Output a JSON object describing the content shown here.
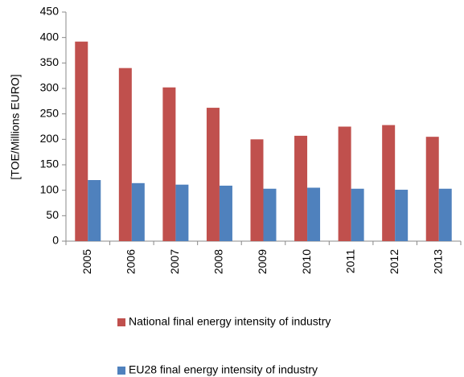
{
  "chart_data": {
    "type": "bar",
    "y_label": "[TOE/Millions EURO]",
    "categories": [
      "2005",
      "2006",
      "2007",
      "2008",
      "2009",
      "2010",
      "2011",
      "2012",
      "2013"
    ],
    "series": [
      {
        "name": "National final energy intensity of industry",
        "color": "#c0504d",
        "values": [
          392,
          340,
          302,
          262,
          200,
          207,
          225,
          228,
          205
        ]
      },
      {
        "name": "EU28 final energy intensity of industry",
        "color": "#4f81bd",
        "values": [
          120,
          114,
          111,
          109,
          103,
          105,
          103,
          101,
          103
        ]
      }
    ],
    "ylim": [
      0,
      450
    ],
    "yticks": [
      0,
      50,
      100,
      150,
      200,
      250,
      300,
      350,
      400,
      450
    ],
    "grid": false,
    "legend": "bottom"
  }
}
